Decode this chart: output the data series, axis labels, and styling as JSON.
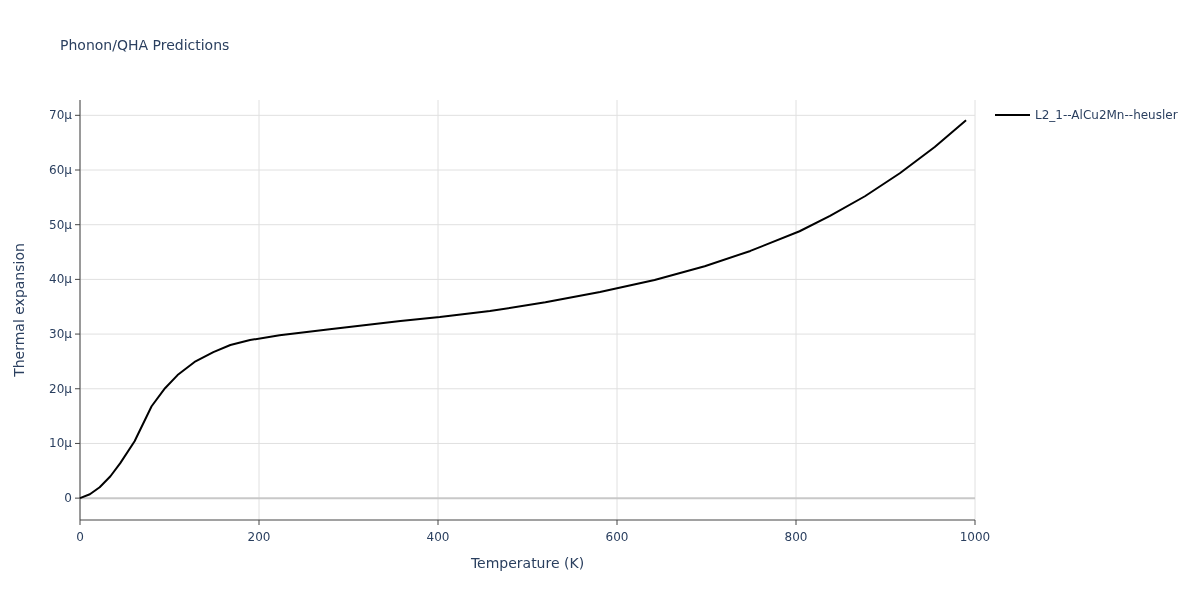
{
  "chart_data": {
    "type": "line",
    "title": "Phonon/QHA Predictions",
    "xlabel": "Temperature (K)",
    "ylabel": "Thermal expansion",
    "xlim": [
      0,
      1000
    ],
    "xticks": [
      0,
      200,
      400,
      600,
      800,
      1000
    ],
    "ylim": [
      -4,
      72.8
    ],
    "yticks": [
      0,
      {
        "value": 10,
        "label": "10µ"
      },
      {
        "value": 20,
        "label": "20µ"
      },
      {
        "value": 30,
        "label": "30µ"
      },
      {
        "value": 40,
        "label": "40µ"
      },
      {
        "value": 50,
        "label": "50µ"
      },
      {
        "value": 60,
        "label": "60µ"
      },
      {
        "value": 70,
        "label": "70µ"
      }
    ],
    "grid": true,
    "legend": "top right",
    "line_style": "solid",
    "marker": "none",
    "series": [
      {
        "name": "L2_1--AlCu2Mn--heusler",
        "color": "#000000",
        "x": [
          0,
          11,
          22,
          34,
          45,
          61,
          80,
          95,
          109,
          128,
          149,
          168,
          190,
          223,
          279,
          358,
          402,
          458,
          520,
          581,
          642,
          698,
          749,
          804,
          838,
          877,
          916,
          955,
          990
        ],
        "values": [
          0,
          0.7,
          2.0,
          4.0,
          6.4,
          10.4,
          16.8,
          20.1,
          22.5,
          24.9,
          26.7,
          28.0,
          28.9,
          29.8,
          30.9,
          32.4,
          33.1,
          34.2,
          35.8,
          37.7,
          39.9,
          42.4,
          45.2,
          48.8,
          51.6,
          55.2,
          59.4,
          64.2,
          69.1
        ]
      }
    ]
  }
}
